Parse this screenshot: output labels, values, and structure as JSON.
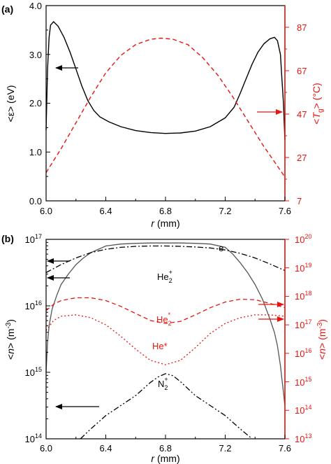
{
  "chart_data": [
    {
      "panel_label": "(a)",
      "type": "line",
      "xlabel_var": "r",
      "xlabel_unit": " (mm)",
      "xlim": [
        6.0,
        7.6
      ],
      "xticks": [
        "6.0",
        "6.4",
        "6.8",
        "7.2",
        "7.6"
      ],
      "ylabel_left": "<ε> (eV)",
      "ylim_left": [
        0.0,
        4.0
      ],
      "yticks_left": [
        "0.0",
        "1.0",
        "2.0",
        "3.0",
        "4.0"
      ],
      "ylabel_right_pre": "<",
      "ylabel_right_var": "T",
      "ylabel_right_sub": "g",
      "ylabel_right_post": "> (°C)",
      "ylim_right": [
        7,
        97
      ],
      "yticks_right": [
        "7",
        "27",
        "47",
        "67",
        "87"
      ],
      "colors": {
        "left_axis": "#000000",
        "right_axis": "#e8150f"
      },
      "series": [
        {
          "axis": "left",
          "style": "solid",
          "color": "#000000",
          "x": [
            6.0,
            6.01,
            6.02,
            6.03,
            6.05,
            6.08,
            6.12,
            6.16,
            6.2,
            6.24,
            6.28,
            6.32,
            6.36,
            6.42,
            6.5,
            6.6,
            6.7,
            6.8,
            6.9,
            7.0,
            7.1,
            7.2,
            7.26,
            7.3,
            7.34,
            7.38,
            7.42,
            7.46,
            7.5,
            7.53,
            7.55,
            7.57,
            7.58,
            7.59,
            7.6
          ],
          "values": [
            1.45,
            2.7,
            3.35,
            3.6,
            3.67,
            3.58,
            3.35,
            3.05,
            2.7,
            2.35,
            2.05,
            1.85,
            1.72,
            1.62,
            1.52,
            1.44,
            1.4,
            1.38,
            1.39,
            1.43,
            1.52,
            1.7,
            1.92,
            2.2,
            2.5,
            2.8,
            3.05,
            3.22,
            3.32,
            3.35,
            3.28,
            3.0,
            2.5,
            2.0,
            1.25
          ]
        },
        {
          "axis": "right",
          "style": "dashed",
          "color": "#e8150f",
          "x": [
            6.0,
            6.1,
            6.2,
            6.3,
            6.4,
            6.5,
            6.6,
            6.7,
            6.77,
            6.85,
            6.95,
            7.05,
            7.15,
            7.25,
            7.35,
            7.45,
            7.55,
            7.6
          ],
          "values": [
            20,
            31,
            43,
            55,
            66,
            74,
            79,
            81.5,
            82,
            81.5,
            79,
            73,
            65,
            55,
            44,
            33,
            23,
            18
          ]
        }
      ],
      "annotations": [
        {
          "type": "arrow",
          "direction": "left",
          "axis": "left"
        },
        {
          "type": "arrow",
          "direction": "right",
          "axis": "right"
        }
      ]
    },
    {
      "panel_label": "(b)",
      "type": "line",
      "xlabel_var": "r",
      "xlabel_unit": " (mm)",
      "xlim": [
        6.0,
        7.6
      ],
      "xticks": [
        "6.0",
        "6.4",
        "6.8",
        "7.2",
        "7.6"
      ],
      "ylabel_left_pre": "<",
      "ylabel_left_var": "n",
      "ylabel_left_post": "> (m",
      "ylabel_left_sup": "-3",
      "ylabel_left_end": ")",
      "yscale": "log",
      "ylim_left_exp": [
        14,
        17
      ],
      "ytick_base": "10",
      "yticks_left_exp": [
        "14",
        "15",
        "16",
        "17"
      ],
      "ylabel_right_pre": "<",
      "ylabel_right_var": "n",
      "ylabel_right_post": "> (m",
      "ylabel_right_sup": "-3",
      "ylabel_right_end": ")",
      "ylim_right_exp": [
        13,
        20
      ],
      "yticks_right_exp": [
        "13",
        "14",
        "15",
        "16",
        "17",
        "18",
        "19",
        "20"
      ],
      "colors": {
        "left_axis": "#000000",
        "right_axis": "#e8150f"
      },
      "series": [
        {
          "axis": "left",
          "style": "solid",
          "color": "#555555",
          "x": [
            6.0,
            6.01,
            6.02,
            6.04,
            6.07,
            6.1,
            6.15,
            6.2,
            6.25,
            6.3,
            6.4,
            6.5,
            6.6,
            6.7,
            6.8,
            6.9,
            7.0,
            7.1,
            7.2,
            7.25,
            7.3,
            7.35,
            7.4,
            7.45,
            7.5,
            7.53,
            7.55,
            7.57,
            7.58,
            7.59,
            7.6
          ],
          "exponents": [
            15.0,
            15.45,
            15.7,
            15.95,
            16.15,
            16.32,
            16.48,
            16.62,
            16.72,
            16.8,
            16.9,
            16.93,
            16.94,
            16.945,
            16.945,
            16.945,
            16.94,
            16.93,
            16.88,
            16.78,
            16.65,
            16.5,
            16.32,
            16.1,
            15.8,
            15.6,
            15.4,
            15.1,
            14.9,
            14.7,
            14.5
          ]
        },
        {
          "axis": "left",
          "style": "dashdot",
          "color": "#000000",
          "x": [
            6.0,
            6.1,
            6.2,
            6.3,
            6.4,
            6.5,
            6.6,
            6.7,
            6.8,
            6.9,
            7.0,
            7.1,
            7.2,
            7.3,
            7.4,
            7.5,
            7.6
          ],
          "exponents": [
            16.5,
            16.62,
            16.72,
            16.8,
            16.85,
            16.88,
            16.895,
            16.9,
            16.9,
            16.895,
            16.885,
            16.87,
            16.84,
            16.79,
            16.72,
            16.63,
            16.53
          ]
        },
        {
          "axis": "left",
          "style": "dashdotdot",
          "color": "#000000",
          "x": [
            6.23,
            6.3,
            6.4,
            6.5,
            6.6,
            6.7,
            6.75,
            6.8,
            6.85,
            6.9,
            7.0,
            7.1,
            7.2,
            7.3,
            7.38
          ],
          "exponents": [
            14.0,
            14.15,
            14.35,
            14.5,
            14.65,
            14.85,
            14.93,
            14.98,
            14.95,
            14.86,
            14.65,
            14.5,
            14.35,
            14.15,
            14.0
          ]
        },
        {
          "axis": "right",
          "style": "dashed",
          "color": "#e8150f",
          "x": [
            6.0,
            6.05,
            6.1,
            6.2,
            6.3,
            6.4,
            6.5,
            6.6,
            6.7,
            6.8,
            6.9,
            7.0,
            7.1,
            7.2,
            7.3,
            7.4,
            7.5,
            7.6
          ],
          "exponents": [
            17.5,
            17.72,
            17.85,
            17.95,
            17.95,
            17.85,
            17.65,
            17.4,
            17.15,
            17.05,
            17.12,
            17.35,
            17.6,
            17.8,
            17.9,
            17.88,
            17.75,
            17.6
          ]
        },
        {
          "axis": "right",
          "style": "dotted",
          "color": "#e8150f",
          "x": [
            6.0,
            6.05,
            6.1,
            6.2,
            6.3,
            6.4,
            6.5,
            6.6,
            6.7,
            6.8,
            6.9,
            7.0,
            7.1,
            7.2,
            7.3,
            7.4,
            7.5,
            7.6
          ],
          "exponents": [
            16.8,
            17.15,
            17.3,
            17.35,
            17.25,
            17.0,
            16.6,
            16.15,
            15.75,
            15.6,
            15.75,
            16.2,
            16.7,
            17.05,
            17.25,
            17.35,
            17.35,
            17.3
          ]
        }
      ],
      "curve_labels": [
        {
          "text": "e",
          "color": "#000000"
        },
        {
          "base": "He",
          "sub": "2",
          "sup": "+",
          "color": "#000000"
        },
        {
          "base": "He",
          "sub": "2",
          "sup": "*",
          "color": "#e8150f"
        },
        {
          "base": "He*",
          "color": "#e8150f"
        },
        {
          "base": "N",
          "sub": "2",
          "sup": "+",
          "color": "#000000"
        }
      ],
      "annotations": [
        {
          "type": "arrow",
          "direction": "left",
          "axis": "left"
        },
        {
          "type": "arrow",
          "direction": "left",
          "axis": "left"
        },
        {
          "type": "arrow",
          "direction": "left",
          "axis": "left"
        },
        {
          "type": "arrow",
          "direction": "right",
          "axis": "right"
        },
        {
          "type": "arrow",
          "direction": "right",
          "axis": "right"
        }
      ]
    }
  ]
}
